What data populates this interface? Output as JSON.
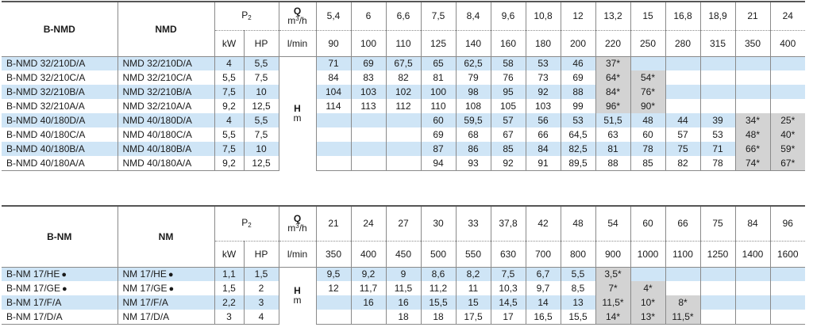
{
  "table1": {
    "col1_header": "B-NMD",
    "col2_header": "NMD",
    "p2_label": "P",
    "p2_sub": "2",
    "kw_label": "kW",
    "hp_label": "HP",
    "q_label": "Q",
    "q_unit1_pre": "m",
    "q_unit1_sup": "3",
    "q_unit1_post": "/h",
    "q_unit2": "l/min",
    "h_label": "H",
    "h_unit": "m",
    "flow_m3h": [
      "5,4",
      "6",
      "6,6",
      "7,5",
      "8,4",
      "9,6",
      "10,8",
      "12",
      "13,2",
      "15",
      "16,8",
      "18,9",
      "21",
      "24"
    ],
    "flow_lmin": [
      "90",
      "100",
      "110",
      "125",
      "140",
      "160",
      "180",
      "200",
      "220",
      "250",
      "280",
      "315",
      "350",
      "400"
    ],
    "rows": [
      {
        "bnmd": "B-NMD  32/210D/A",
        "nmd": "NMD  32/210D/A",
        "kw": "4",
        "hp": "5,5",
        "vals": [
          "71",
          "69",
          "67,5",
          "65",
          "62,5",
          "58",
          "53",
          "46",
          "37*",
          "",
          "",
          "",
          "",
          ""
        ]
      },
      {
        "bnmd": "B-NMD  32/210C/A",
        "nmd": "NMD  32/210C/A",
        "kw": "5,5",
        "hp": "7,5",
        "vals": [
          "84",
          "83",
          "82",
          "81",
          "79",
          "76",
          "73",
          "69",
          "64*",
          "54*",
          "",
          "",
          "",
          ""
        ]
      },
      {
        "bnmd": "B-NMD  32/210B/A",
        "nmd": "NMD  32/210B/A",
        "kw": "7,5",
        "hp": "10",
        "vals": [
          "104",
          "103",
          "102",
          "100",
          "98",
          "95",
          "92",
          "88",
          "84*",
          "76*",
          "",
          "",
          "",
          ""
        ]
      },
      {
        "bnmd": "B-NMD  32/210A/A",
        "nmd": "NMD  32/210A/A",
        "kw": "9,2",
        "hp": "12,5",
        "vals": [
          "114",
          "113",
          "112",
          "110",
          "108",
          "105",
          "103",
          "99",
          "96*",
          "90*",
          "",
          "",
          "",
          ""
        ]
      },
      {
        "bnmd": "B-NMD  40/180D/A",
        "nmd": "NMD  40/180D/A",
        "kw": "4",
        "hp": "5,5",
        "vals": [
          "",
          "",
          "",
          "60",
          "59,5",
          "57",
          "56",
          "53",
          "51,5",
          "48",
          "44",
          "39",
          "34*",
          "25*"
        ]
      },
      {
        "bnmd": "B-NMD  40/180C/A",
        "nmd": "NMD  40/180C/A",
        "kw": "5,5",
        "hp": "7,5",
        "vals": [
          "",
          "",
          "",
          "69",
          "68",
          "67",
          "66",
          "64,5",
          "63",
          "60",
          "57",
          "53",
          "48*",
          "40*"
        ]
      },
      {
        "bnmd": "B-NMD  40/180B/A",
        "nmd": "NMD  40/180B/A",
        "kw": "7,5",
        "hp": "10",
        "vals": [
          "",
          "",
          "",
          "87",
          "86",
          "85",
          "84",
          "82,5",
          "81",
          "78",
          "75",
          "71",
          "66*",
          "59*"
        ]
      },
      {
        "bnmd": "B-NMD  40/180A/A",
        "nmd": "NMD  40/180A/A",
        "kw": "9,2",
        "hp": "12,5",
        "vals": [
          "",
          "",
          "",
          "94",
          "93",
          "92",
          "91",
          "89,5",
          "88",
          "85",
          "82",
          "78",
          "74*",
          "67*"
        ]
      }
    ]
  },
  "table2": {
    "col1_header": "B-NM",
    "col2_header": "NM",
    "p2_label": "P",
    "p2_sub": "2",
    "kw_label": "kW",
    "hp_label": "HP",
    "q_label": "Q",
    "q_unit1_pre": "m",
    "q_unit1_sup": "3",
    "q_unit1_post": "/h",
    "q_unit2": "l/min",
    "h_label": "H",
    "h_unit": "m",
    "dot_symbol": "●",
    "flow_m3h": [
      "21",
      "24",
      "27",
      "30",
      "33",
      "37,8",
      "42",
      "48",
      "54",
      "60",
      "66",
      "75",
      "84",
      "96"
    ],
    "flow_lmin": [
      "350",
      "400",
      "450",
      "500",
      "550",
      "630",
      "700",
      "800",
      "900",
      "1000",
      "1100",
      "1250",
      "1400",
      "1600"
    ],
    "rows": [
      {
        "bnm": "B-NM  17/HE",
        "nm": "NM  17/HE",
        "dot": true,
        "kw": "1,1",
        "hp": "1,5",
        "vals": [
          "9,5",
          "9,2",
          "9",
          "8,6",
          "8,2",
          "7,5",
          "6,7",
          "5,5",
          "3,5*",
          "",
          "",
          "",
          "",
          ""
        ]
      },
      {
        "bnm": "B-NM  17/GE",
        "nm": "NM  17/GE",
        "dot": true,
        "kw": "1,5",
        "hp": "2",
        "vals": [
          "12",
          "11,7",
          "11,5",
          "11,2",
          "11",
          "10,3",
          "9,7",
          "8,5",
          "7*",
          "4*",
          "",
          "",
          "",
          ""
        ]
      },
      {
        "bnm": "B-NM  17/F/A",
        "nm": "NM  17/F/A",
        "dot": false,
        "kw": "2,2",
        "hp": "3",
        "vals": [
          "",
          "16",
          "16",
          "15,5",
          "15",
          "14,5",
          "14",
          "13",
          "11,5*",
          "10*",
          "8*",
          "",
          "",
          ""
        ]
      },
      {
        "bnm": "B-NM  17/D/A",
        "nm": "NM  17/D/A",
        "dot": false,
        "kw": "3",
        "hp": "4",
        "vals": [
          "",
          "",
          "18",
          "18",
          "17,5",
          "17",
          "16,5",
          "15,5",
          "14*",
          "13*",
          "11,5*",
          "",
          "",
          ""
        ]
      }
    ]
  }
}
